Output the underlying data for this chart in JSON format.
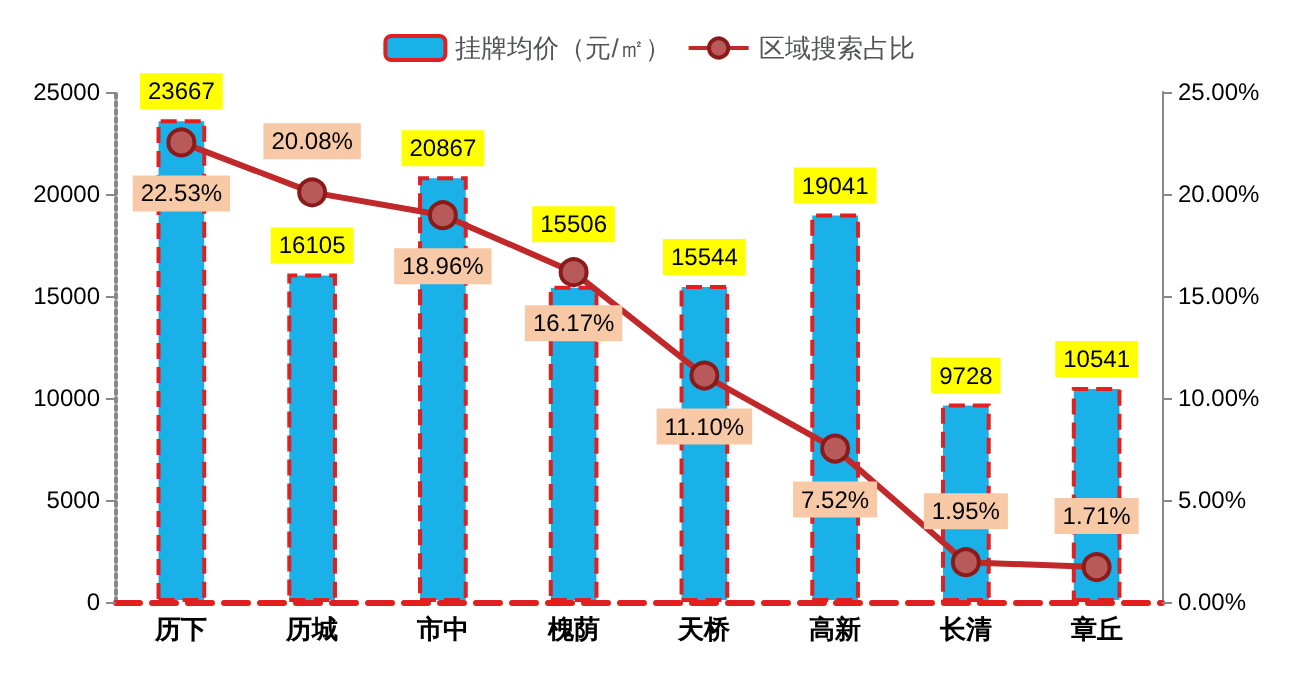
{
  "chart_data": {
    "type": "bar",
    "categories": [
      "历下",
      "历城",
      "市中",
      "槐荫",
      "天桥",
      "高新",
      "长清",
      "章丘"
    ],
    "series": [
      {
        "name": "挂牌均价（元/㎡）",
        "color": "#1ab0e8",
        "values": [
          23667,
          16105,
          20867,
          15506,
          15544,
          19041,
          9728,
          10541
        ],
        "value_labels": [
          "23667",
          "16105",
          "20867",
          "15506",
          "15544",
          "19041",
          "9728",
          "10541"
        ]
      },
      {
        "name": "区域搜索占比",
        "type": "line",
        "axis": "y2",
        "color": "#c0282a",
        "values": [
          22.53,
          20.08,
          18.96,
          16.17,
          11.1,
          7.52,
          1.95,
          1.71
        ],
        "value_labels": [
          "22.53%",
          "20.08%",
          "18.96%",
          "16.17%",
          "11.10%",
          "7.52%",
          "1.95%",
          "1.71%"
        ]
      }
    ],
    "ylim": [
      0,
      25000
    ],
    "yticks": [
      0,
      5000,
      10000,
      15000,
      20000,
      25000
    ],
    "y2lim": [
      0,
      25
    ],
    "y2ticks": [
      {
        "value": 0,
        "label": "0.00%"
      },
      {
        "value": 5,
        "label": "5.00%"
      },
      {
        "value": 10,
        "label": "10.00%"
      },
      {
        "value": 15,
        "label": "15.00%"
      },
      {
        "value": 20,
        "label": "20.00%"
      },
      {
        "value": 25,
        "label": "25.00%"
      }
    ],
    "grid": false,
    "legend": "top",
    "marker": "circle"
  }
}
